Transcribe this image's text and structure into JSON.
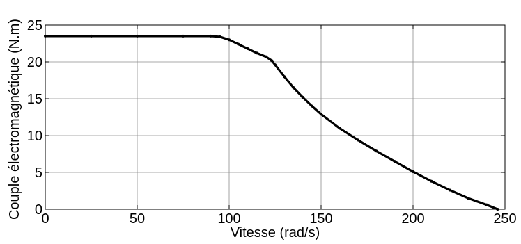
{
  "chart_data": {
    "type": "line",
    "title": "",
    "xlabel": "Vitesse (rad/s)",
    "ylabel": "Couple électromagnétique (N.m)",
    "xlim": [
      0,
      250
    ],
    "ylim": [
      0,
      25
    ],
    "xticks": [
      0,
      50,
      100,
      150,
      200,
      250
    ],
    "yticks": [
      0,
      5,
      10,
      15,
      20,
      25
    ],
    "xtick_labels": [
      "0",
      "50",
      "100",
      "150",
      "200",
      "250"
    ],
    "ytick_labels": [
      "0",
      "5",
      "10",
      "15",
      "20",
      "25"
    ],
    "grid": true,
    "series": [
      {
        "color": "#000000",
        "marker": "dot",
        "x": [
          0,
          25,
          50,
          75,
          90,
          95,
          100,
          105,
          110,
          115,
          120,
          123,
          125,
          130,
          135,
          140,
          145,
          150,
          160,
          170,
          180,
          190,
          200,
          210,
          220,
          230,
          240,
          246
        ],
        "y": [
          23.5,
          23.5,
          23.5,
          23.5,
          23.5,
          23.4,
          23.0,
          22.4,
          21.8,
          21.2,
          20.7,
          20.2,
          19.6,
          18.0,
          16.5,
          15.2,
          14.0,
          12.9,
          11.0,
          9.4,
          7.9,
          6.5,
          5.1,
          3.8,
          2.6,
          1.5,
          0.6,
          0.0
        ]
      }
    ]
  }
}
